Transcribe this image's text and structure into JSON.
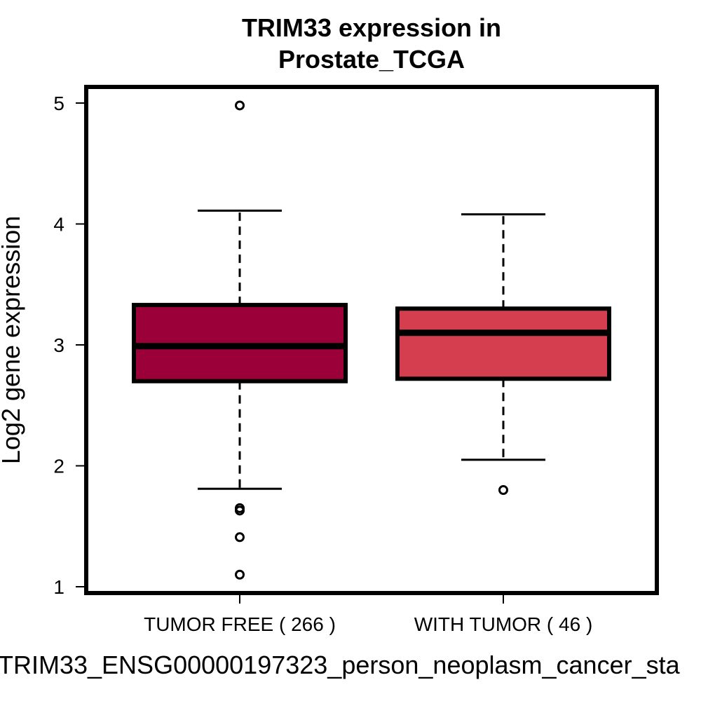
{
  "chart_data": {
    "type": "box",
    "title_lines": [
      "TRIM33 expression in",
      "Prostate_TCGA"
    ],
    "ylabel": "Log2 gene expression",
    "xlabel": "TRIM33_ENSG00000197323_person_neoplasm_cancer_sta",
    "ylim": [
      1,
      5.06
    ],
    "yticks": [
      1,
      2,
      3,
      4,
      5
    ],
    "grid": false,
    "categories": [
      "TUMOR FREE ( 266 )",
      "WITH TUMOR ( 46 )"
    ],
    "boxes": [
      {
        "label": "TUMOR FREE ( 266 )",
        "color": "#9b0039",
        "whisker_low": 1.81,
        "q1": 2.7,
        "median": 2.99,
        "q3": 3.33,
        "whisker_high": 4.11,
        "outliers": [
          4.98,
          1.65,
          1.63,
          1.41,
          1.1
        ]
      },
      {
        "label": "WITH TUMOR ( 46 )",
        "color": "#d53e4f",
        "whisker_low": 2.05,
        "q1": 2.72,
        "median": 3.1,
        "q3": 3.3,
        "whisker_high": 4.08,
        "outliers": [
          1.8
        ]
      }
    ]
  }
}
